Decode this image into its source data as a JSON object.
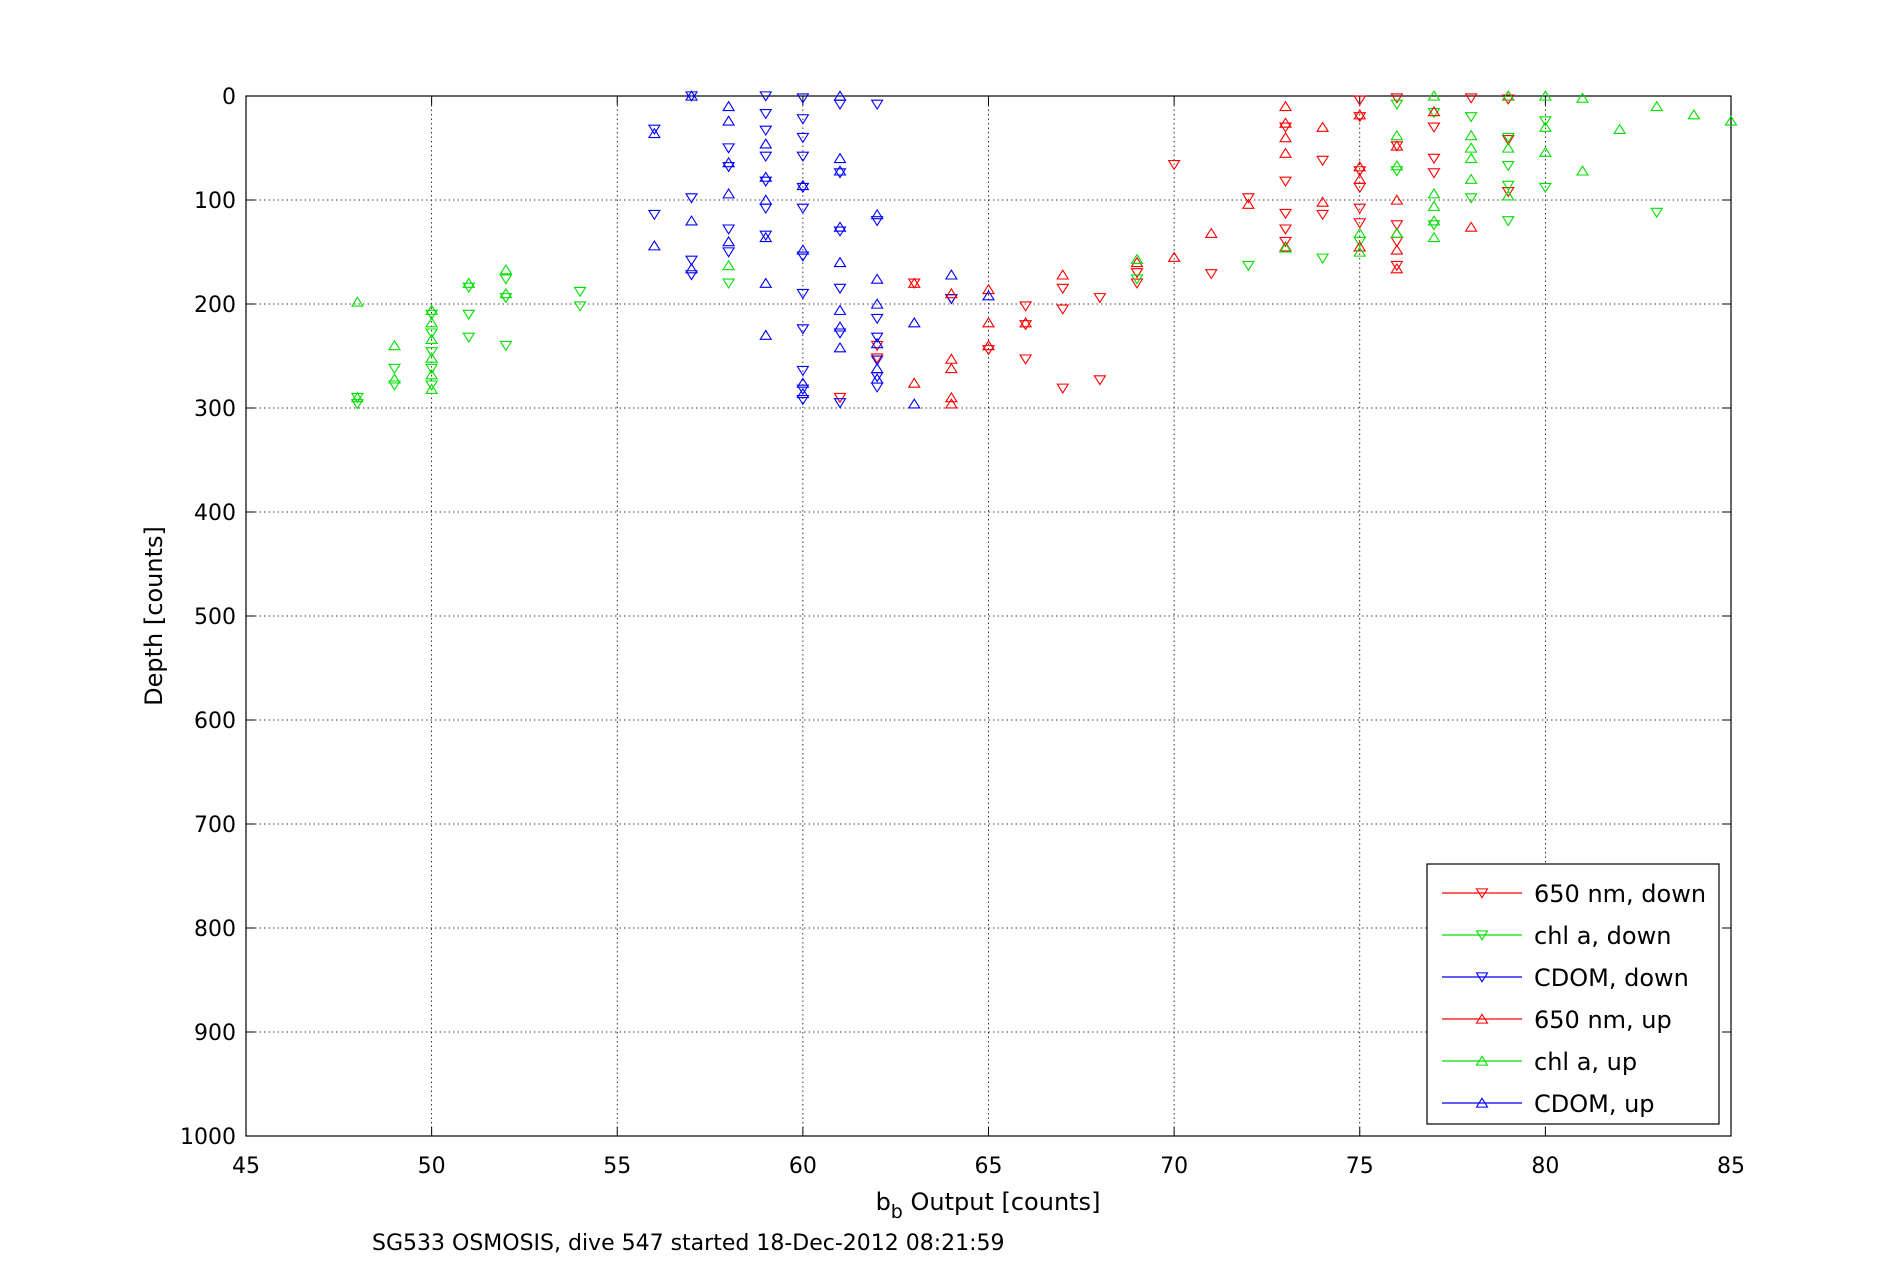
{
  "chart_data": {
    "type": "scatter",
    "title": "",
    "caption": "SG533 OSMOSIS, dive 547 started 18-Dec-2012 08:21:59",
    "xlabel_main": "b",
    "xlabel_sub": "b",
    "xlabel_rest": " Output [counts]",
    "ylabel": "Depth [counts]",
    "xlim": [
      45,
      85
    ],
    "ylim": [
      0,
      1000
    ],
    "y_reversed": true,
    "grid": true,
    "legend_position": "bottom-right",
    "x_ticks": [
      45,
      50,
      55,
      60,
      65,
      70,
      75,
      80,
      85
    ],
    "y_ticks": [
      0,
      100,
      200,
      300,
      400,
      500,
      600,
      700,
      800,
      900,
      1000
    ],
    "series": [
      {
        "name": "650 nm, down",
        "color": "#ff0000",
        "marker": "triangle-down",
        "points": [
          [
            66,
            202
          ],
          [
            66,
            220
          ],
          [
            66,
            253
          ],
          [
            67,
            185
          ],
          [
            67,
            205
          ],
          [
            67,
            281
          ],
          [
            68,
            194
          ],
          [
            68,
            273
          ],
          [
            69,
            170
          ],
          [
            69,
            180
          ],
          [
            70,
            66
          ],
          [
            71,
            171
          ],
          [
            72,
            98
          ],
          [
            73,
            30
          ],
          [
            73,
            82
          ],
          [
            73,
            113
          ],
          [
            73,
            128
          ],
          [
            73,
            140
          ],
          [
            74,
            62
          ],
          [
            74,
            114
          ],
          [
            75,
            4
          ],
          [
            75,
            20
          ],
          [
            75,
            72
          ],
          [
            75,
            88
          ],
          [
            75,
            108
          ],
          [
            75,
            122
          ],
          [
            76,
            2
          ],
          [
            76,
            48
          ],
          [
            76,
            124
          ],
          [
            76,
            140
          ],
          [
            76,
            163
          ],
          [
            77,
            30
          ],
          [
            77,
            60
          ],
          [
            77,
            74
          ],
          [
            78,
            2
          ],
          [
            79,
            3
          ],
          [
            79,
            42
          ],
          [
            79,
            92
          ],
          [
            65,
            244
          ],
          [
            64,
            195
          ],
          [
            63,
            180
          ],
          [
            61,
            290
          ],
          [
            62,
            240
          ],
          [
            62,
            252
          ]
        ]
      },
      {
        "name": "chl a, down",
        "color": "#00e000",
        "marker": "triangle-down",
        "points": [
          [
            48,
            290
          ],
          [
            48,
            296
          ],
          [
            49,
            262
          ],
          [
            49,
            278
          ],
          [
            50,
            210
          ],
          [
            50,
            228
          ],
          [
            50,
            246
          ],
          [
            50,
            262
          ],
          [
            50,
            278
          ],
          [
            51,
            184
          ],
          [
            51,
            210
          ],
          [
            51,
            232
          ],
          [
            52,
            176
          ],
          [
            52,
            194
          ],
          [
            52,
            240
          ],
          [
            54,
            188
          ],
          [
            54,
            202
          ],
          [
            58,
            180
          ],
          [
            69,
            176
          ],
          [
            72,
            163
          ],
          [
            74,
            156
          ],
          [
            75,
            140
          ],
          [
            76,
            8
          ],
          [
            76,
            72
          ],
          [
            77,
            16
          ],
          [
            77,
            124
          ],
          [
            78,
            20
          ],
          [
            78,
            98
          ],
          [
            79,
            40
          ],
          [
            79,
            67
          ],
          [
            79,
            86
          ],
          [
            79,
            120
          ],
          [
            80,
            24
          ],
          [
            80,
            88
          ],
          [
            83,
            112
          ]
        ]
      },
      {
        "name": "CDOM, down",
        "color": "#0000ff",
        "marker": "triangle-down",
        "points": [
          [
            56,
            32
          ],
          [
            56,
            114
          ],
          [
            57,
            0
          ],
          [
            57,
            98
          ],
          [
            57,
            158
          ],
          [
            57,
            172
          ],
          [
            58,
            50
          ],
          [
            58,
            68
          ],
          [
            58,
            128
          ],
          [
            58,
            150
          ],
          [
            59,
            0
          ],
          [
            59,
            17
          ],
          [
            59,
            33
          ],
          [
            59,
            58
          ],
          [
            59,
            82
          ],
          [
            59,
            108
          ],
          [
            59,
            134
          ],
          [
            60,
            2
          ],
          [
            60,
            22
          ],
          [
            60,
            40
          ],
          [
            60,
            58
          ],
          [
            60,
            88
          ],
          [
            60,
            108
          ],
          [
            60,
            154
          ],
          [
            60,
            190
          ],
          [
            60,
            224
          ],
          [
            60,
            264
          ],
          [
            60,
            282
          ],
          [
            60,
            292
          ],
          [
            61,
            8
          ],
          [
            61,
            74
          ],
          [
            61,
            130
          ],
          [
            61,
            185
          ],
          [
            61,
            228
          ],
          [
            61,
            295
          ],
          [
            62,
            8
          ],
          [
            62,
            120
          ],
          [
            62,
            214
          ],
          [
            62,
            232
          ],
          [
            62,
            254
          ],
          [
            62,
            270
          ],
          [
            62,
            280
          ],
          [
            64,
            195
          ]
        ]
      },
      {
        "name": "650 nm, up",
        "color": "#ff0000",
        "marker": "triangle-up",
        "points": [
          [
            63,
            180
          ],
          [
            63,
            276
          ],
          [
            64,
            190
          ],
          [
            64,
            253
          ],
          [
            64,
            262
          ],
          [
            64,
            290
          ],
          [
            64,
            296
          ],
          [
            65,
            186
          ],
          [
            65,
            218
          ],
          [
            65,
            240
          ],
          [
            66,
            218
          ],
          [
            67,
            172
          ],
          [
            69,
            160
          ],
          [
            70,
            155
          ],
          [
            71,
            132
          ],
          [
            72,
            104
          ],
          [
            73,
            10
          ],
          [
            73,
            26
          ],
          [
            73,
            40
          ],
          [
            73,
            55
          ],
          [
            73,
            145
          ],
          [
            74,
            30
          ],
          [
            74,
            102
          ],
          [
            75,
            18
          ],
          [
            75,
            68
          ],
          [
            75,
            80
          ],
          [
            75,
            145
          ],
          [
            76,
            48
          ],
          [
            76,
            100
          ],
          [
            76,
            132
          ],
          [
            76,
            148
          ],
          [
            76,
            166
          ],
          [
            77,
            15
          ],
          [
            78,
            126
          ],
          [
            79,
            0
          ]
        ]
      },
      {
        "name": "chl a, up",
        "color": "#00e000",
        "marker": "triangle-up",
        "points": [
          [
            48,
            198
          ],
          [
            48,
            290
          ],
          [
            49,
            240
          ],
          [
            49,
            272
          ],
          [
            50,
            206
          ],
          [
            50,
            218
          ],
          [
            50,
            234
          ],
          [
            50,
            252
          ],
          [
            50,
            268
          ],
          [
            50,
            282
          ],
          [
            51,
            180
          ],
          [
            52,
            167
          ],
          [
            52,
            190
          ],
          [
            58,
            163
          ],
          [
            69,
            157
          ],
          [
            73,
            146
          ],
          [
            75,
            132
          ],
          [
            75,
            150
          ],
          [
            76,
            38
          ],
          [
            76,
            67
          ],
          [
            76,
            132
          ],
          [
            77,
            0
          ],
          [
            77,
            94
          ],
          [
            77,
            106
          ],
          [
            77,
            120
          ],
          [
            77,
            136
          ],
          [
            78,
            38
          ],
          [
            78,
            50
          ],
          [
            78,
            60
          ],
          [
            78,
            80
          ],
          [
            79,
            0
          ],
          [
            79,
            50
          ],
          [
            79,
            96
          ],
          [
            80,
            0
          ],
          [
            80,
            30
          ],
          [
            80,
            54
          ],
          [
            81,
            2
          ],
          [
            81,
            72
          ],
          [
            82,
            32
          ],
          [
            83,
            10
          ],
          [
            84,
            18
          ],
          [
            85,
            24
          ]
        ]
      },
      {
        "name": "CDOM, up",
        "color": "#0000ff",
        "marker": "triangle-up",
        "points": [
          [
            56,
            36
          ],
          [
            56,
            144
          ],
          [
            57,
            0
          ],
          [
            57,
            120
          ],
          [
            57,
            166
          ],
          [
            58,
            10
          ],
          [
            58,
            24
          ],
          [
            58,
            64
          ],
          [
            58,
            94
          ],
          [
            58,
            140
          ],
          [
            59,
            46
          ],
          [
            59,
            78
          ],
          [
            59,
            100
          ],
          [
            59,
            136
          ],
          [
            59,
            180
          ],
          [
            59,
            230
          ],
          [
            60,
            86
          ],
          [
            60,
            148
          ],
          [
            60,
            276
          ],
          [
            60,
            286
          ],
          [
            61,
            0
          ],
          [
            61,
            60
          ],
          [
            61,
            72
          ],
          [
            61,
            126
          ],
          [
            61,
            160
          ],
          [
            61,
            206
          ],
          [
            61,
            222
          ],
          [
            61,
            242
          ],
          [
            62,
            114
          ],
          [
            62,
            176
          ],
          [
            62,
            200
          ],
          [
            62,
            238
          ],
          [
            62,
            262
          ],
          [
            62,
            272
          ],
          [
            63,
            218
          ],
          [
            63,
            296
          ],
          [
            64,
            172
          ],
          [
            65,
            192
          ]
        ]
      }
    ]
  }
}
